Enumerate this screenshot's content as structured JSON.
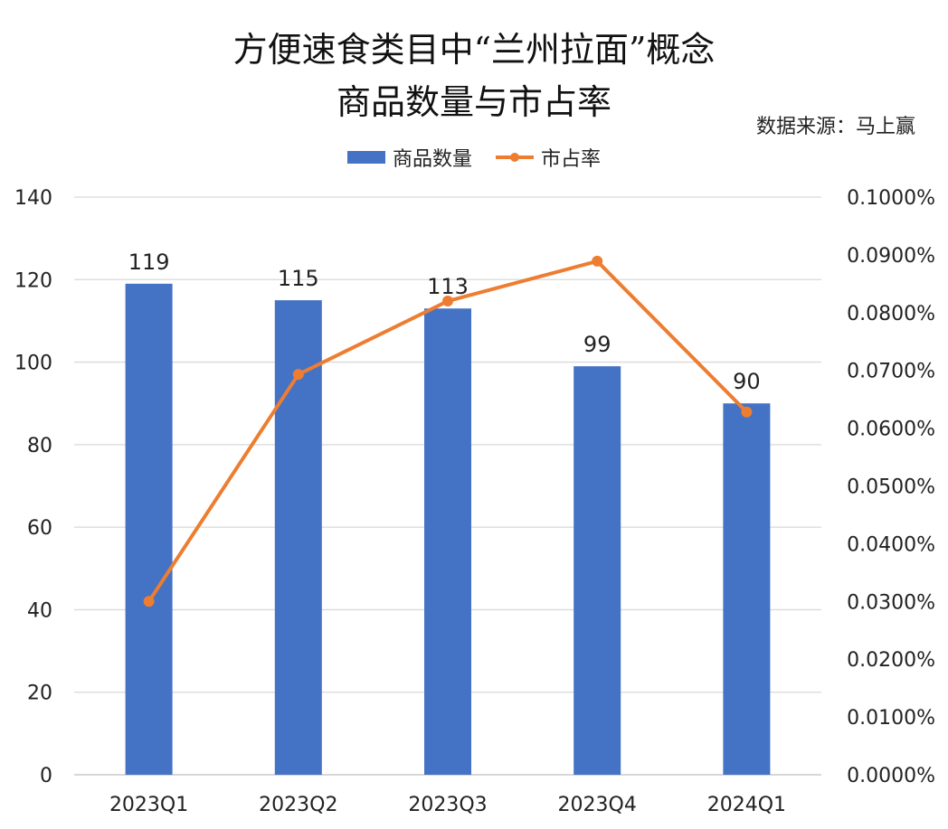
{
  "chart_data": {
    "type": "bar+line",
    "title": [
      "方便速食类目中“兰州拉面”概念",
      "商品数量与市占率"
    ],
    "source": "数据来源：马上赢",
    "categories": [
      "2023Q1",
      "2023Q2",
      "2023Q3",
      "2023Q4",
      "2024Q1"
    ],
    "series": [
      {
        "name": "商品数量",
        "type": "bar",
        "axis": "left",
        "color": "#4472C4",
        "values": [
          119,
          115,
          113,
          99,
          90
        ],
        "labels": [
          "119",
          "115",
          "113",
          "99",
          "90"
        ]
      },
      {
        "name": "市占率",
        "type": "line",
        "axis": "right",
        "color": "#ED7D31",
        "values": [
          0.03,
          0.0693,
          0.082,
          0.0889,
          0.0628
        ]
      }
    ],
    "left_axis": {
      "min": 0,
      "max": 140,
      "ticks": [
        "0",
        "20",
        "40",
        "60",
        "80",
        "100",
        "120",
        "140"
      ]
    },
    "right_axis": {
      "min": 0,
      "max": 0.1,
      "unit": "%",
      "ticks": [
        "0.0000%",
        "0.0100%",
        "0.0200%",
        "0.0300%",
        "0.0400%",
        "0.0500%",
        "0.0600%",
        "0.0700%",
        "0.0800%",
        "0.0900%",
        "0.1000%"
      ]
    },
    "grid": true,
    "legend": "top-center"
  }
}
